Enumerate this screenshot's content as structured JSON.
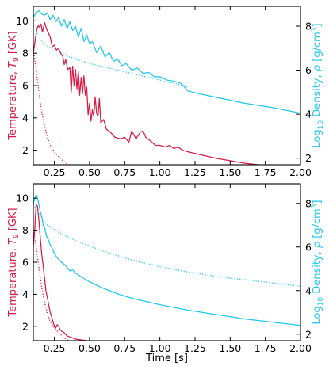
{
  "colors": {
    "temperature": "#d81b44",
    "density": "#1ec8f0",
    "axis": "#000000"
  },
  "chart_data": [
    {
      "type": "line",
      "panel": "top",
      "xlabel": "",
      "ylabel_left": "Temperature, T9 [GK]",
      "ylabel_left_parts": {
        "pre": "Temperature, ",
        "var": "T",
        "sub": "9",
        "post": " [GK]"
      },
      "ylabel_right": "Log10 Density, ρ [g/cm3]",
      "ylabel_right_parts": {
        "pre": "Log",
        "sub": "10",
        "mid": " Density, ",
        "var": "ρ",
        "post": " [g/cm",
        "sup": "3",
        "end": "]"
      },
      "xlim": [
        0.1,
        2.0
      ],
      "ylim_left": [
        1.1,
        10.9
      ],
      "ylim_right": [
        1.7,
        8.9
      ],
      "x_ticks": [
        "0.25",
        "0.50",
        "0.75",
        "1.00",
        "1.25",
        "1.50",
        "1.75",
        "2.00"
      ],
      "y_ticks_left": [
        "2",
        "4",
        "6",
        "8",
        "10"
      ],
      "y_ticks_right": [
        "2",
        "4",
        "6",
        "8"
      ],
      "series": [
        {
          "axis": "left",
          "style": "solid",
          "points": [
            [
              0.1,
              8.0
            ],
            [
              0.115,
              8.9
            ],
            [
              0.125,
              9.5
            ],
            [
              0.135,
              9.7
            ],
            [
              0.145,
              9.6
            ],
            [
              0.155,
              9.8
            ],
            [
              0.165,
              9.3
            ],
            [
              0.18,
              9.9
            ],
            [
              0.195,
              9.5
            ],
            [
              0.21,
              9.2
            ],
            [
              0.22,
              9.0
            ],
            [
              0.235,
              8.4
            ],
            [
              0.25,
              8.5
            ],
            [
              0.265,
              8.2
            ],
            [
              0.28,
              8.3
            ],
            [
              0.3,
              7.9
            ],
            [
              0.31,
              7.8
            ],
            [
              0.32,
              7.3
            ],
            [
              0.33,
              7.6
            ],
            [
              0.345,
              7.0
            ],
            [
              0.36,
              7.1
            ],
            [
              0.37,
              5.6
            ],
            [
              0.38,
              7.2
            ],
            [
              0.39,
              6.0
            ],
            [
              0.4,
              7.0
            ],
            [
              0.41,
              5.8
            ],
            [
              0.42,
              6.9
            ],
            [
              0.43,
              5.4
            ],
            [
              0.44,
              6.5
            ],
            [
              0.45,
              5.5
            ],
            [
              0.46,
              6.6
            ],
            [
              0.47,
              5.4
            ],
            [
              0.48,
              5.9
            ],
            [
              0.49,
              4.2
            ],
            [
              0.5,
              4.9
            ],
            [
              0.51,
              3.8
            ],
            [
              0.52,
              4.5
            ],
            [
              0.53,
              4.1
            ],
            [
              0.54,
              5.3
            ],
            [
              0.55,
              4.3
            ],
            [
              0.56,
              4.1
            ],
            [
              0.57,
              5.2
            ],
            [
              0.58,
              3.7
            ],
            [
              0.6,
              3.9
            ],
            [
              0.62,
              3.3
            ],
            [
              0.65,
              3.1
            ],
            [
              0.68,
              2.8
            ],
            [
              0.72,
              2.7
            ],
            [
              0.75,
              2.8
            ],
            [
              0.78,
              2.5
            ],
            [
              0.8,
              3.2
            ],
            [
              0.83,
              2.7
            ],
            [
              0.86,
              3.1
            ],
            [
              0.88,
              3.2
            ],
            [
              0.9,
              2.8
            ],
            [
              0.93,
              2.6
            ],
            [
              0.97,
              2.3
            ],
            [
              1.0,
              2.3
            ],
            [
              1.04,
              2.2
            ],
            [
              1.07,
              2.3
            ],
            [
              1.1,
              2.1
            ],
            [
              1.13,
              2.2
            ],
            [
              1.16,
              2.0
            ],
            [
              1.2,
              1.9
            ],
            [
              1.3,
              1.7
            ],
            [
              1.4,
              1.5
            ],
            [
              1.5,
              1.35
            ],
            [
              1.6,
              1.2
            ],
            [
              1.7,
              1.1
            ]
          ]
        },
        {
          "axis": "left",
          "style": "dotted",
          "points": [
            [
              0.1,
              8.2
            ],
            [
              0.12,
              7.0
            ],
            [
              0.14,
              5.6
            ],
            [
              0.16,
              4.4
            ],
            [
              0.18,
              3.5
            ],
            [
              0.2,
              2.8
            ],
            [
              0.22,
              2.3
            ],
            [
              0.25,
              1.9
            ],
            [
              0.28,
              1.6
            ],
            [
              0.31,
              1.35
            ],
            [
              0.35,
              1.1
            ]
          ]
        },
        {
          "axis": "right",
          "style": "solid",
          "points": [
            [
              0.1,
              8.4
            ],
            [
              0.12,
              8.6
            ],
            [
              0.14,
              8.7
            ],
            [
              0.16,
              8.55
            ],
            [
              0.18,
              8.5
            ],
            [
              0.2,
              8.6
            ],
            [
              0.22,
              8.3
            ],
            [
              0.24,
              8.5
            ],
            [
              0.26,
              8.2
            ],
            [
              0.28,
              8.4
            ],
            [
              0.3,
              8.0
            ],
            [
              0.32,
              8.3
            ],
            [
              0.34,
              7.9
            ],
            [
              0.36,
              8.2
            ],
            [
              0.38,
              7.8
            ],
            [
              0.4,
              8.0
            ],
            [
              0.42,
              7.5
            ],
            [
              0.44,
              7.9
            ],
            [
              0.46,
              7.3
            ],
            [
              0.48,
              7.6
            ],
            [
              0.5,
              7.2
            ],
            [
              0.52,
              7.3
            ],
            [
              0.55,
              6.8
            ],
            [
              0.58,
              7.1
            ],
            [
              0.61,
              6.6
            ],
            [
              0.64,
              6.8
            ],
            [
              0.67,
              6.4
            ],
            [
              0.7,
              6.5
            ],
            [
              0.73,
              6.2
            ],
            [
              0.76,
              6.3
            ],
            [
              0.8,
              6.0
            ],
            [
              0.84,
              6.1
            ],
            [
              0.88,
              5.85
            ],
            [
              0.92,
              5.9
            ],
            [
              0.96,
              5.7
            ],
            [
              1.0,
              5.7
            ],
            [
              1.05,
              5.55
            ],
            [
              1.1,
              5.5
            ],
            [
              1.15,
              5.4
            ],
            [
              1.18,
              5.2
            ],
            [
              1.2,
              5.05
            ],
            [
              1.3,
              4.9
            ],
            [
              1.45,
              4.7
            ],
            [
              1.6,
              4.5
            ],
            [
              1.8,
              4.3
            ],
            [
              2.0,
              4.05
            ]
          ]
        },
        {
          "axis": "right",
          "style": "dotted",
          "points": [
            [
              0.1,
              8.0
            ],
            [
              0.15,
              7.4
            ],
            [
              0.2,
              7.1
            ],
            [
              0.3,
              6.75
            ],
            [
              0.4,
              6.5
            ],
            [
              0.5,
              6.3
            ],
            [
              0.6,
              6.15
            ],
            [
              0.7,
              6.0
            ],
            [
              0.8,
              5.85
            ],
            [
              0.9,
              5.7
            ],
            [
              1.0,
              5.55
            ],
            [
              1.1,
              5.4
            ],
            [
              1.2,
              5.25
            ]
          ]
        }
      ]
    },
    {
      "type": "line",
      "panel": "bottom",
      "xlabel": "Time [s]",
      "ylabel_left": "Temperature, T9 [GK]",
      "ylabel_left_parts": {
        "pre": "Temperature, ",
        "var": "T",
        "sub": "9",
        "post": " [GK]"
      },
      "ylabel_right": "Log10 Density, ρ [g/cm3]",
      "ylabel_right_parts": {
        "pre": "Log",
        "sub": "10",
        "mid": " Density, ",
        "var": "ρ",
        "post": " [g/cm",
        "sup": "3",
        "end": "]"
      },
      "xlim": [
        0.1,
        2.0
      ],
      "ylim_left": [
        1.1,
        10.9
      ],
      "ylim_right": [
        1.7,
        8.9
      ],
      "x_ticks": [
        "0.25",
        "0.50",
        "0.75",
        "1.00",
        "1.25",
        "1.50",
        "1.75",
        "2.00"
      ],
      "y_ticks_left": [
        "2",
        "4",
        "6",
        "8",
        "10"
      ],
      "y_ticks_right": [
        "2",
        "4",
        "6",
        "8"
      ],
      "series": [
        {
          "axis": "left",
          "style": "solid",
          "points": [
            [
              0.1,
              7.0
            ],
            [
              0.11,
              8.0
            ],
            [
              0.12,
              9.6
            ],
            [
              0.13,
              9.5
            ],
            [
              0.14,
              8.6
            ],
            [
              0.15,
              7.5
            ],
            [
              0.16,
              6.5
            ],
            [
              0.17,
              5.8
            ],
            [
              0.18,
              5.0
            ],
            [
              0.19,
              4.2
            ],
            [
              0.2,
              3.8
            ],
            [
              0.21,
              3.3
            ],
            [
              0.22,
              2.9
            ],
            [
              0.23,
              2.6
            ],
            [
              0.24,
              2.3
            ],
            [
              0.25,
              2.0
            ],
            [
              0.26,
              1.9
            ],
            [
              0.27,
              2.1
            ],
            [
              0.28,
              2.0
            ],
            [
              0.29,
              1.8
            ],
            [
              0.3,
              1.7
            ],
            [
              0.32,
              1.6
            ],
            [
              0.34,
              1.4
            ],
            [
              0.37,
              1.3
            ],
            [
              0.4,
              1.2
            ],
            [
              0.44,
              1.15
            ],
            [
              0.48,
              1.1
            ]
          ]
        },
        {
          "axis": "left",
          "style": "dotted",
          "points": [
            [
              0.1,
              8.2
            ],
            [
              0.12,
              7.0
            ],
            [
              0.14,
              5.6
            ],
            [
              0.16,
              4.4
            ],
            [
              0.18,
              3.5
            ],
            [
              0.2,
              2.8
            ],
            [
              0.22,
              2.3
            ],
            [
              0.25,
              1.9
            ],
            [
              0.28,
              1.6
            ],
            [
              0.31,
              1.35
            ],
            [
              0.35,
              1.1
            ]
          ]
        },
        {
          "axis": "right",
          "style": "solid",
          "points": [
            [
              0.1,
              8.0
            ],
            [
              0.11,
              8.2
            ],
            [
              0.12,
              8.4
            ],
            [
              0.13,
              8.25
            ],
            [
              0.14,
              7.95
            ],
            [
              0.15,
              7.6
            ],
            [
              0.16,
              7.4
            ],
            [
              0.17,
              7.0
            ],
            [
              0.18,
              6.9
            ],
            [
              0.19,
              6.6
            ],
            [
              0.2,
              6.4
            ],
            [
              0.21,
              6.3
            ],
            [
              0.22,
              6.1
            ],
            [
              0.23,
              6.0
            ],
            [
              0.25,
              5.7
            ],
            [
              0.27,
              5.5
            ],
            [
              0.3,
              5.3
            ],
            [
              0.33,
              5.15
            ],
            [
              0.36,
              4.9
            ],
            [
              0.38,
              4.95
            ],
            [
              0.4,
              4.8
            ],
            [
              0.45,
              4.6
            ],
            [
              0.5,
              4.4
            ],
            [
              0.55,
              4.25
            ],
            [
              0.6,
              4.1
            ],
            [
              0.7,
              3.85
            ],
            [
              0.8,
              3.65
            ],
            [
              0.9,
              3.5
            ],
            [
              1.0,
              3.35
            ],
            [
              1.2,
              3.1
            ],
            [
              1.4,
              2.9
            ],
            [
              1.6,
              2.7
            ],
            [
              1.8,
              2.55
            ],
            [
              2.0,
              2.4
            ]
          ]
        },
        {
          "axis": "right",
          "style": "dotted",
          "points": [
            [
              0.1,
              7.95
            ],
            [
              0.15,
              7.4
            ],
            [
              0.2,
              7.0
            ],
            [
              0.3,
              6.6
            ],
            [
              0.4,
              6.3
            ],
            [
              0.5,
              6.05
            ],
            [
              0.6,
              5.8
            ],
            [
              0.7,
              5.6
            ],
            [
              0.8,
              5.4
            ],
            [
              0.9,
              5.25
            ],
            [
              1.0,
              5.1
            ],
            [
              1.2,
              4.85
            ],
            [
              1.4,
              4.65
            ],
            [
              1.6,
              4.5
            ],
            [
              1.8,
              4.35
            ],
            [
              2.0,
              4.2
            ]
          ]
        }
      ]
    }
  ]
}
